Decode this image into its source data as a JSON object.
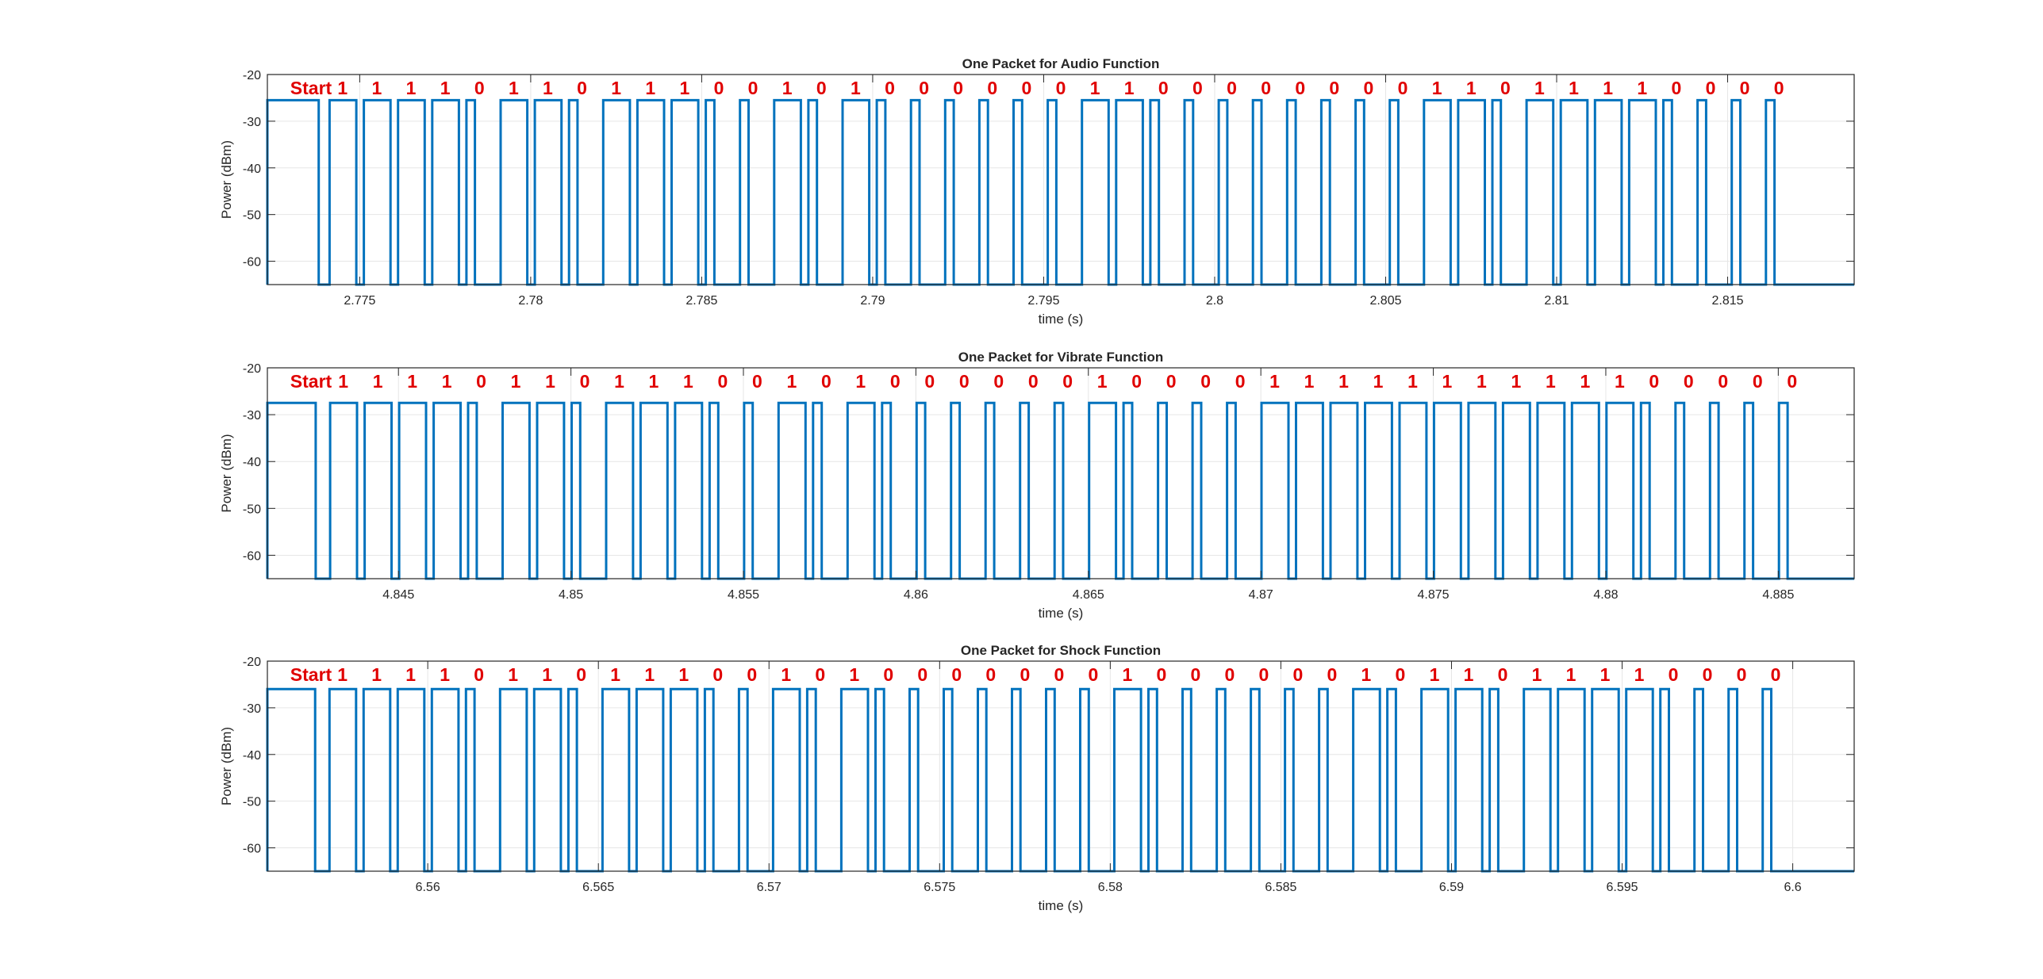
{
  "chart_data": [
    {
      "type": "line",
      "title": "One Packet for Audio Function",
      "xlabel": "time (s)",
      "ylabel": "Power (dBm)",
      "xlim": [
        2.7723,
        2.8187
      ],
      "ylim": [
        -65,
        -20
      ],
      "xticks": [
        2.775,
        2.78,
        2.785,
        2.79,
        2.795,
        2.8,
        2.805,
        2.81,
        2.815
      ],
      "xtick_labels": [
        "2.775",
        "2.78",
        "2.785",
        "2.79",
        "2.795",
        "2.8",
        "2.805",
        "2.81",
        "2.815"
      ],
      "yticks": [
        -60,
        -50,
        -40,
        -30,
        -20
      ],
      "ytick_labels": [
        "-60",
        "-50",
        "-40",
        "-30",
        "-20"
      ],
      "grid": true,
      "high_level_dBm": -25.5,
      "low_level_dBm": -65,
      "start_pulse_s": [
        2.7723,
        2.7738
      ],
      "bit_period_s": 0.001,
      "first_bit_s": 2.774,
      "start_label": "Start",
      "bits": [
        "1",
        "1",
        "1",
        "1",
        "0",
        "1",
        "1",
        "0",
        "1",
        "1",
        "1",
        "0",
        "0",
        "1",
        "0",
        "1",
        "0",
        "0",
        "0",
        "0",
        "0",
        "0",
        "1",
        "1",
        "0",
        "0",
        "0",
        "0",
        "0",
        "0",
        "0",
        "0",
        "1",
        "1",
        "0",
        "1",
        "1",
        "1",
        "1",
        "0",
        "0",
        "0",
        "0"
      ],
      "bit_labels": [
        "1",
        "1",
        "1",
        "1",
        "0",
        "1",
        "1",
        "0",
        "1",
        "1",
        "1",
        "0",
        "0",
        "1",
        "0",
        "1",
        "0",
        "0",
        "0",
        "0",
        "0",
        "0",
        "1",
        "1",
        "0",
        "0",
        "0",
        "0",
        "0",
        "0",
        "0",
        "0",
        "1",
        "1",
        "0",
        "1",
        "1",
        "1",
        "1",
        "0",
        "0",
        "0",
        "0"
      ]
    },
    {
      "type": "line",
      "title": "One Packet for Vibrate Function",
      "xlabel": "time (s)",
      "ylabel": "Power (dBm)",
      "xlim": [
        4.8412,
        4.8872
      ],
      "ylim": [
        -65,
        -20
      ],
      "xticks": [
        4.845,
        4.85,
        4.855,
        4.86,
        4.865,
        4.87,
        4.875,
        4.88,
        4.885
      ],
      "xtick_labels": [
        "4.845",
        "4.85",
        "4.855",
        "4.86",
        "4.865",
        "4.87",
        "4.875",
        "4.88",
        "4.885"
      ],
      "yticks": [
        -60,
        -50,
        -40,
        -30,
        -20
      ],
      "ytick_labels": [
        "-60",
        "-50",
        "-40",
        "-30",
        "-20"
      ],
      "grid": true,
      "high_level_dBm": -27.5,
      "low_level_dBm": -65,
      "start_pulse_s": [
        4.8412,
        4.8426
      ],
      "bit_period_s": 0.001,
      "first_bit_s": 4.8429,
      "start_label": "Start",
      "bits": [
        "1",
        "1",
        "1",
        "1",
        "0",
        "1",
        "1",
        "0",
        "1",
        "1",
        "1",
        "0",
        "0",
        "1",
        "0",
        "1",
        "0",
        "0",
        "0",
        "0",
        "0",
        "0",
        "1",
        "0",
        "0",
        "0",
        "0",
        "1",
        "1",
        "1",
        "1",
        "1",
        "1",
        "1",
        "1",
        "1",
        "1",
        "1",
        "0",
        "0",
        "0",
        "0",
        "0"
      ],
      "bit_labels": [
        "1",
        "1",
        "1",
        "1",
        "0",
        "1",
        "1",
        "0",
        "1",
        "1",
        "1",
        "0",
        "0",
        "1",
        "0",
        "1",
        "0",
        "0",
        "0",
        "0",
        "0",
        "0",
        "1",
        "0",
        "0",
        "0",
        "0",
        "1",
        "1",
        "1",
        "1",
        "1",
        "1",
        "1",
        "1",
        "1",
        "1",
        "1",
        "0",
        "0",
        "0",
        "0",
        "0"
      ]
    },
    {
      "type": "line",
      "title": "One Packet for Shock Function",
      "xlabel": "time (s)",
      "ylabel": "Power (dBm)",
      "xlim": [
        6.5553,
        6.6018
      ],
      "ylim": [
        -65,
        -20
      ],
      "xticks": [
        6.56,
        6.565,
        6.57,
        6.575,
        6.58,
        6.585,
        6.59,
        6.595,
        6.6
      ],
      "xtick_labels": [
        "6.56",
        "6.565",
        "6.57",
        "6.575",
        "6.58",
        "6.585",
        "6.59",
        "6.595",
        "6.6"
      ],
      "yticks": [
        -60,
        -50,
        -40,
        -30,
        -20
      ],
      "ytick_labels": [
        "-60",
        "-50",
        "-40",
        "-30",
        "-20"
      ],
      "grid": true,
      "high_level_dBm": -26,
      "low_level_dBm": -65,
      "start_pulse_s": [
        6.5553,
        6.5567
      ],
      "bit_period_s": 0.001,
      "first_bit_s": 6.557,
      "start_label": "Start",
      "bits": [
        "1",
        "1",
        "1",
        "1",
        "0",
        "1",
        "1",
        "0",
        "1",
        "1",
        "1",
        "0",
        "0",
        "1",
        "0",
        "1",
        "0",
        "0",
        "0",
        "0",
        "0",
        "0",
        "0",
        "1",
        "0",
        "0",
        "0",
        "0",
        "0",
        "0",
        "1",
        "0",
        "1",
        "1",
        "0",
        "1",
        "1",
        "1",
        "1",
        "0",
        "0",
        "0",
        "0"
      ],
      "bit_labels": [
        "1",
        "1",
        "1",
        "1",
        "0",
        "1",
        "1",
        "0",
        "1",
        "1",
        "1",
        "0",
        "0",
        "1",
        "0",
        "1",
        "0",
        "0",
        "0",
        "0",
        "0",
        "0",
        "0",
        "1",
        "0",
        "0",
        "0",
        "0",
        "0",
        "0",
        "1",
        "0",
        "1",
        "1",
        "0",
        "1",
        "1",
        "1",
        "1",
        "0",
        "0",
        "0",
        "0"
      ]
    }
  ]
}
